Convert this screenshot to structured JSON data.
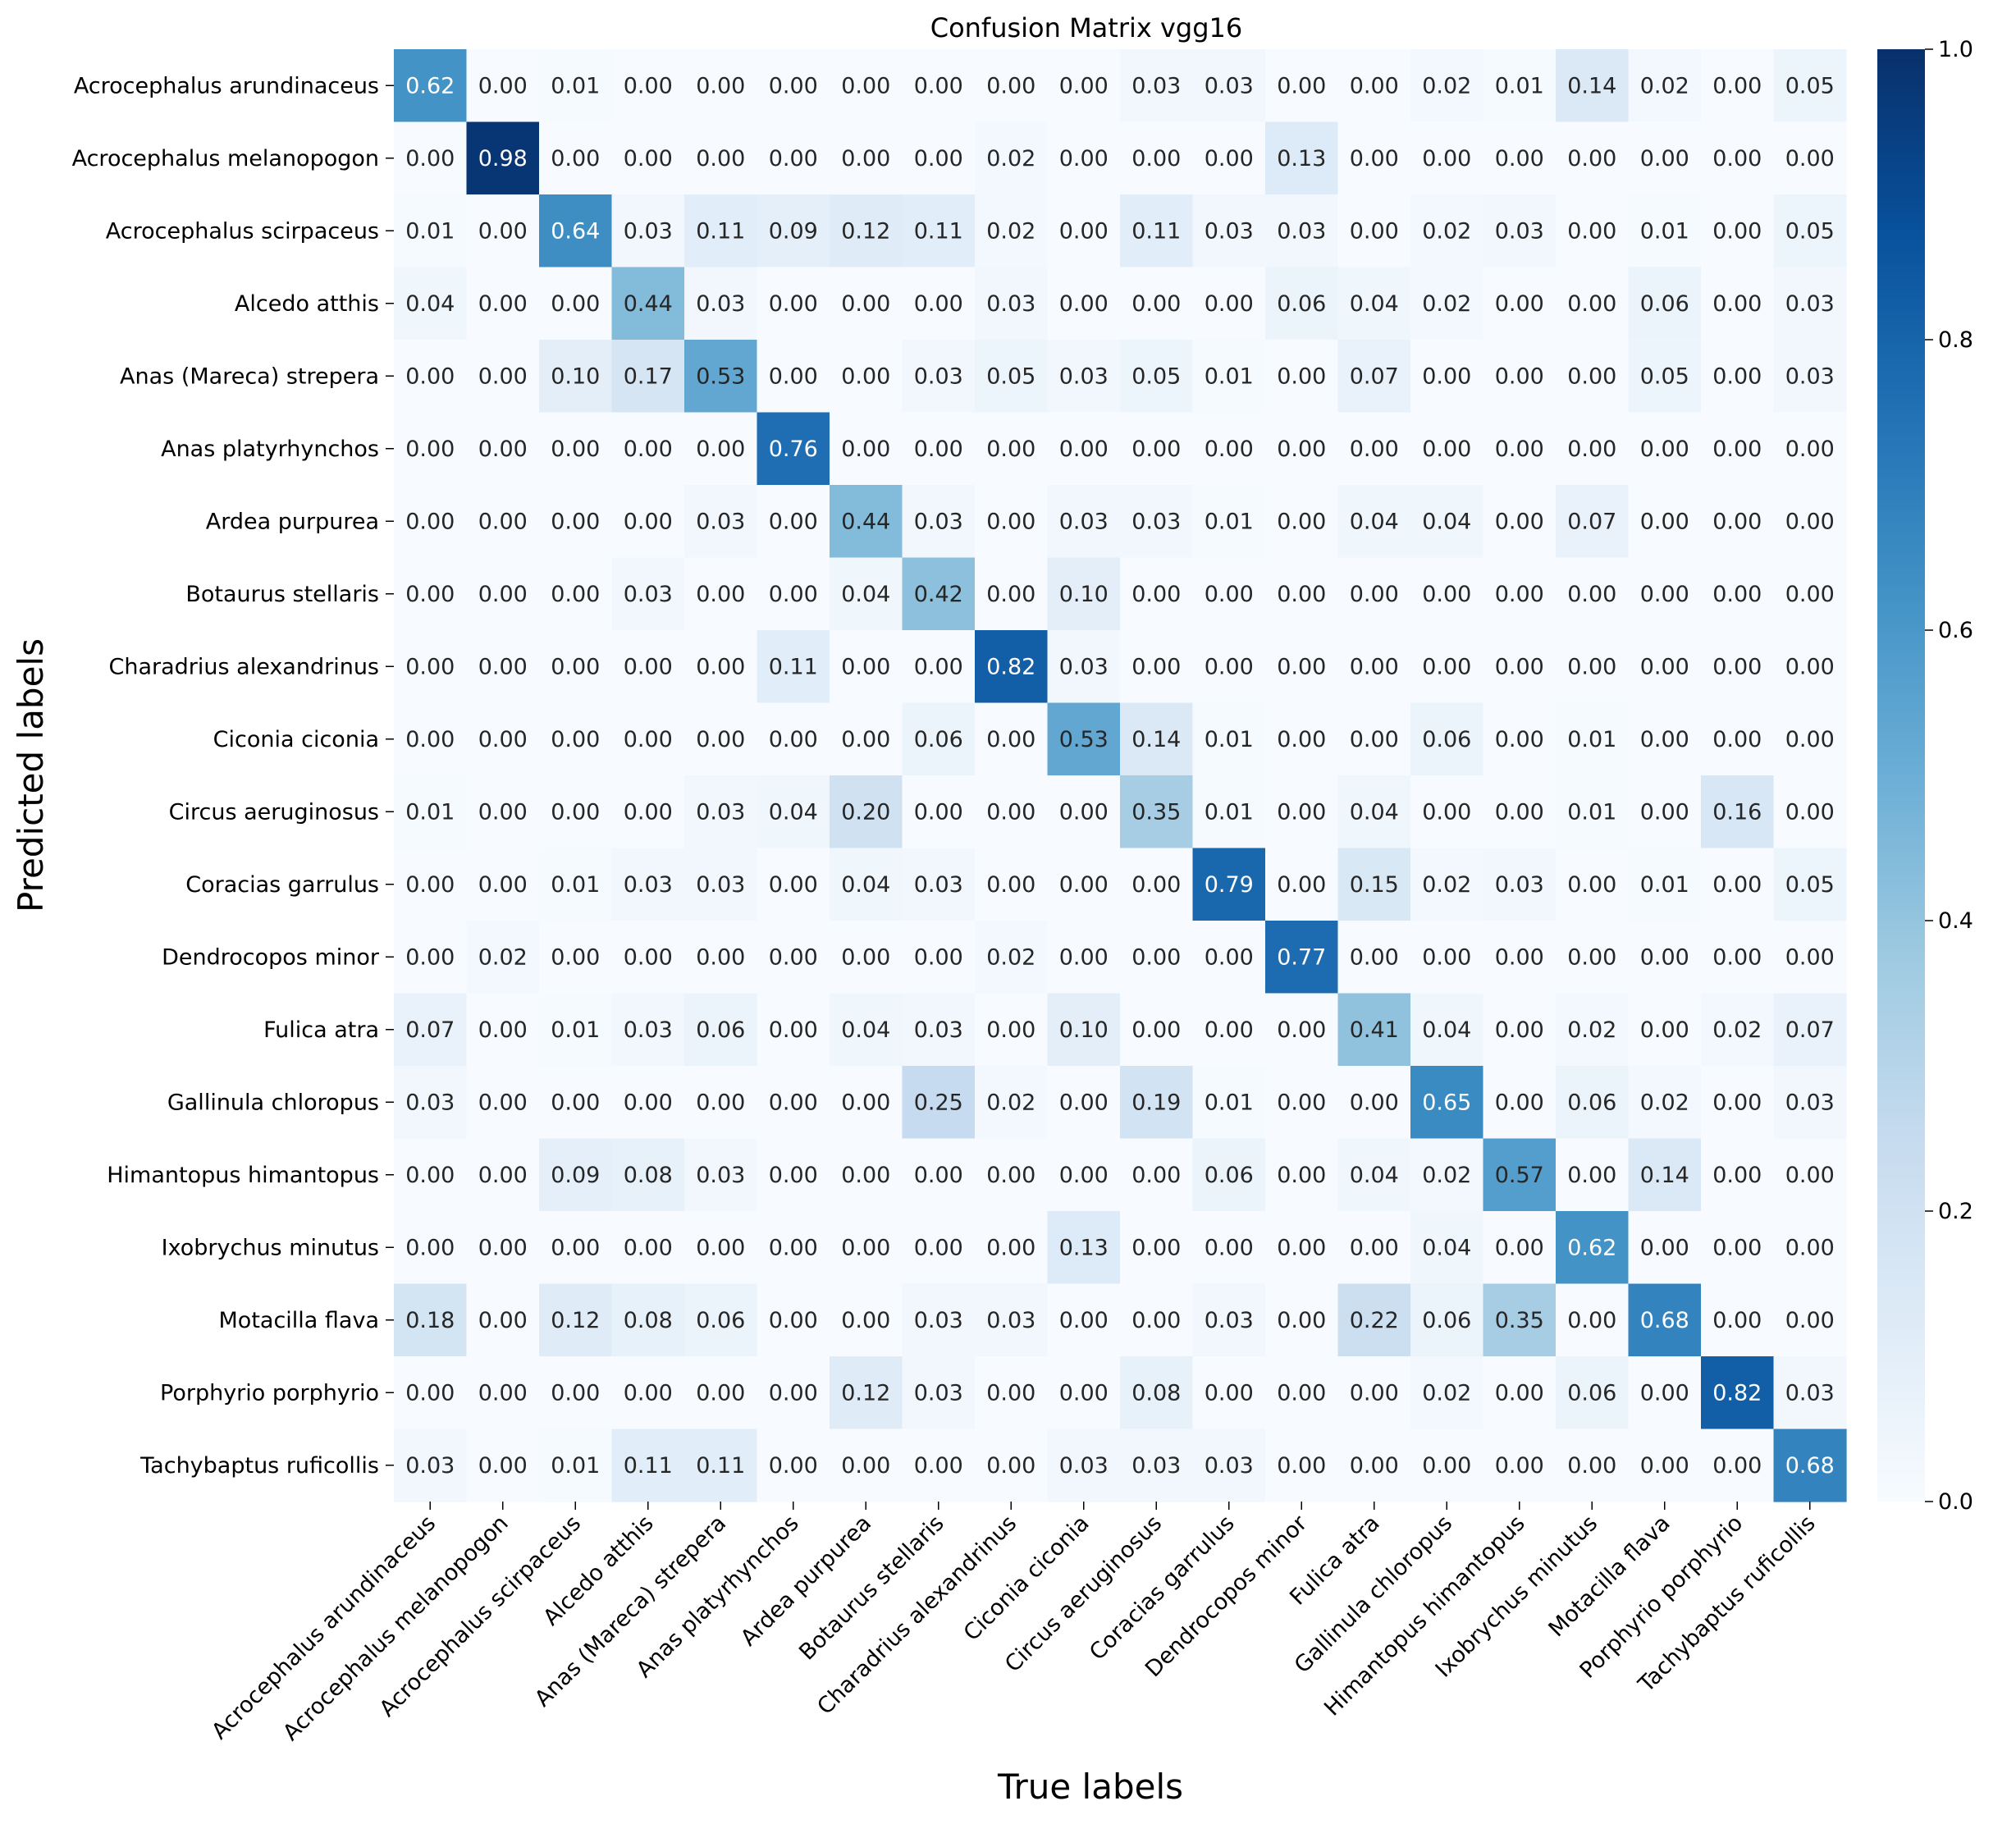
{
  "chart_data": {
    "type": "heatmap",
    "title": "Confusion Matrix vgg16",
    "xlabel": "True labels",
    "ylabel": "Predicted labels",
    "categories": [
      "Acrocephalus arundinaceus",
      "Acrocephalus melanopogon",
      "Acrocephalus scirpaceus",
      "Alcedo atthis",
      "Anas (Mareca) strepera",
      "Anas platyrhynchos",
      "Ardea purpurea",
      "Botaurus stellaris",
      "Charadrius alexandrinus",
      "Ciconia ciconia",
      "Circus aeruginosus",
      "Coracias garrulus",
      "Dendrocopos minor",
      "Fulica atra",
      "Gallinula chloropus",
      "Himantopus himantopus",
      "Ixobrychus minutus",
      "Motacilla flava",
      "Porphyrio porphyrio",
      "Tachybaptus ruficollis"
    ],
    "values": [
      [
        0.62,
        0.0,
        0.01,
        0.0,
        0.0,
        0.0,
        0.0,
        0.0,
        0.0,
        0.0,
        0.03,
        0.03,
        0.0,
        0.0,
        0.02,
        0.01,
        0.14,
        0.02,
        0.0,
        0.05
      ],
      [
        0.0,
        0.98,
        0.0,
        0.0,
        0.0,
        0.0,
        0.0,
        0.0,
        0.02,
        0.0,
        0.0,
        0.0,
        0.13,
        0.0,
        0.0,
        0.0,
        0.0,
        0.0,
        0.0,
        0.0
      ],
      [
        0.01,
        0.0,
        0.64,
        0.03,
        0.11,
        0.09,
        0.12,
        0.11,
        0.02,
        0.0,
        0.11,
        0.03,
        0.03,
        0.0,
        0.02,
        0.03,
        0.0,
        0.01,
        0.0,
        0.05
      ],
      [
        0.04,
        0.0,
        0.0,
        0.44,
        0.03,
        0.0,
        0.0,
        0.0,
        0.03,
        0.0,
        0.0,
        0.0,
        0.06,
        0.04,
        0.02,
        0.0,
        0.0,
        0.06,
        0.0,
        0.03
      ],
      [
        0.0,
        0.0,
        0.1,
        0.17,
        0.53,
        0.0,
        0.0,
        0.03,
        0.05,
        0.03,
        0.05,
        0.01,
        0.0,
        0.07,
        0.0,
        0.0,
        0.0,
        0.05,
        0.0,
        0.03
      ],
      [
        0.0,
        0.0,
        0.0,
        0.0,
        0.0,
        0.76,
        0.0,
        0.0,
        0.0,
        0.0,
        0.0,
        0.0,
        0.0,
        0.0,
        0.0,
        0.0,
        0.0,
        0.0,
        0.0,
        0.0
      ],
      [
        0.0,
        0.0,
        0.0,
        0.0,
        0.03,
        0.0,
        0.44,
        0.03,
        0.0,
        0.03,
        0.03,
        0.01,
        0.0,
        0.04,
        0.04,
        0.0,
        0.07,
        0.0,
        0.0,
        0.0
      ],
      [
        0.0,
        0.0,
        0.0,
        0.03,
        0.0,
        0.0,
        0.04,
        0.42,
        0.0,
        0.1,
        0.0,
        0.0,
        0.0,
        0.0,
        0.0,
        0.0,
        0.0,
        0.0,
        0.0,
        0.0
      ],
      [
        0.0,
        0.0,
        0.0,
        0.0,
        0.0,
        0.11,
        0.0,
        0.0,
        0.82,
        0.03,
        0.0,
        0.0,
        0.0,
        0.0,
        0.0,
        0.0,
        0.0,
        0.0,
        0.0,
        0.0
      ],
      [
        0.0,
        0.0,
        0.0,
        0.0,
        0.0,
        0.0,
        0.0,
        0.06,
        0.0,
        0.53,
        0.14,
        0.01,
        0.0,
        0.0,
        0.06,
        0.0,
        0.01,
        0.0,
        0.0,
        0.0
      ],
      [
        0.01,
        0.0,
        0.0,
        0.0,
        0.03,
        0.04,
        0.2,
        0.0,
        0.0,
        0.0,
        0.35,
        0.01,
        0.0,
        0.04,
        0.0,
        0.0,
        0.01,
        0.0,
        0.16,
        0.0
      ],
      [
        0.0,
        0.0,
        0.01,
        0.03,
        0.03,
        0.0,
        0.04,
        0.03,
        0.0,
        0.0,
        0.0,
        0.79,
        0.0,
        0.15,
        0.02,
        0.03,
        0.0,
        0.01,
        0.0,
        0.05
      ],
      [
        0.0,
        0.02,
        0.0,
        0.0,
        0.0,
        0.0,
        0.0,
        0.0,
        0.02,
        0.0,
        0.0,
        0.0,
        0.77,
        0.0,
        0.0,
        0.0,
        0.0,
        0.0,
        0.0,
        0.0
      ],
      [
        0.07,
        0.0,
        0.01,
        0.03,
        0.06,
        0.0,
        0.04,
        0.03,
        0.0,
        0.1,
        0.0,
        0.0,
        0.0,
        0.41,
        0.04,
        0.0,
        0.02,
        0.0,
        0.02,
        0.07
      ],
      [
        0.03,
        0.0,
        0.0,
        0.0,
        0.0,
        0.0,
        0.0,
        0.25,
        0.02,
        0.0,
        0.19,
        0.01,
        0.0,
        0.0,
        0.65,
        0.0,
        0.06,
        0.02,
        0.0,
        0.03
      ],
      [
        0.0,
        0.0,
        0.09,
        0.08,
        0.03,
        0.0,
        0.0,
        0.0,
        0.0,
        0.0,
        0.0,
        0.06,
        0.0,
        0.04,
        0.02,
        0.57,
        0.0,
        0.14,
        0.0,
        0.0
      ],
      [
        0.0,
        0.0,
        0.0,
        0.0,
        0.0,
        0.0,
        0.0,
        0.0,
        0.0,
        0.13,
        0.0,
        0.0,
        0.0,
        0.0,
        0.04,
        0.0,
        0.62,
        0.0,
        0.0,
        0.0
      ],
      [
        0.18,
        0.0,
        0.12,
        0.08,
        0.06,
        0.0,
        0.0,
        0.03,
        0.03,
        0.0,
        0.0,
        0.03,
        0.0,
        0.22,
        0.06,
        0.35,
        0.0,
        0.68,
        0.0,
        0.0
      ],
      [
        0.0,
        0.0,
        0.0,
        0.0,
        0.0,
        0.0,
        0.12,
        0.03,
        0.0,
        0.0,
        0.08,
        0.0,
        0.0,
        0.0,
        0.02,
        0.0,
        0.06,
        0.0,
        0.82,
        0.03
      ],
      [
        0.03,
        0.0,
        0.01,
        0.11,
        0.11,
        0.0,
        0.0,
        0.0,
        0.0,
        0.03,
        0.03,
        0.03,
        0.0,
        0.0,
        0.0,
        0.0,
        0.0,
        0.0,
        0.0,
        0.68
      ]
    ],
    "colorbar": {
      "range": [
        0.0,
        1.0
      ],
      "ticks": [
        "0.0",
        "0.2",
        "0.4",
        "0.6",
        "0.8",
        "1.0"
      ],
      "colormap": "Blues",
      "colors": [
        "#f7fbff",
        "#deebf7",
        "#c6dbef",
        "#9ecae1",
        "#6baed6",
        "#4292c6",
        "#2171b5",
        "#08519c",
        "#08306b"
      ]
    },
    "grid": false,
    "legend": "colorbar-right"
  }
}
